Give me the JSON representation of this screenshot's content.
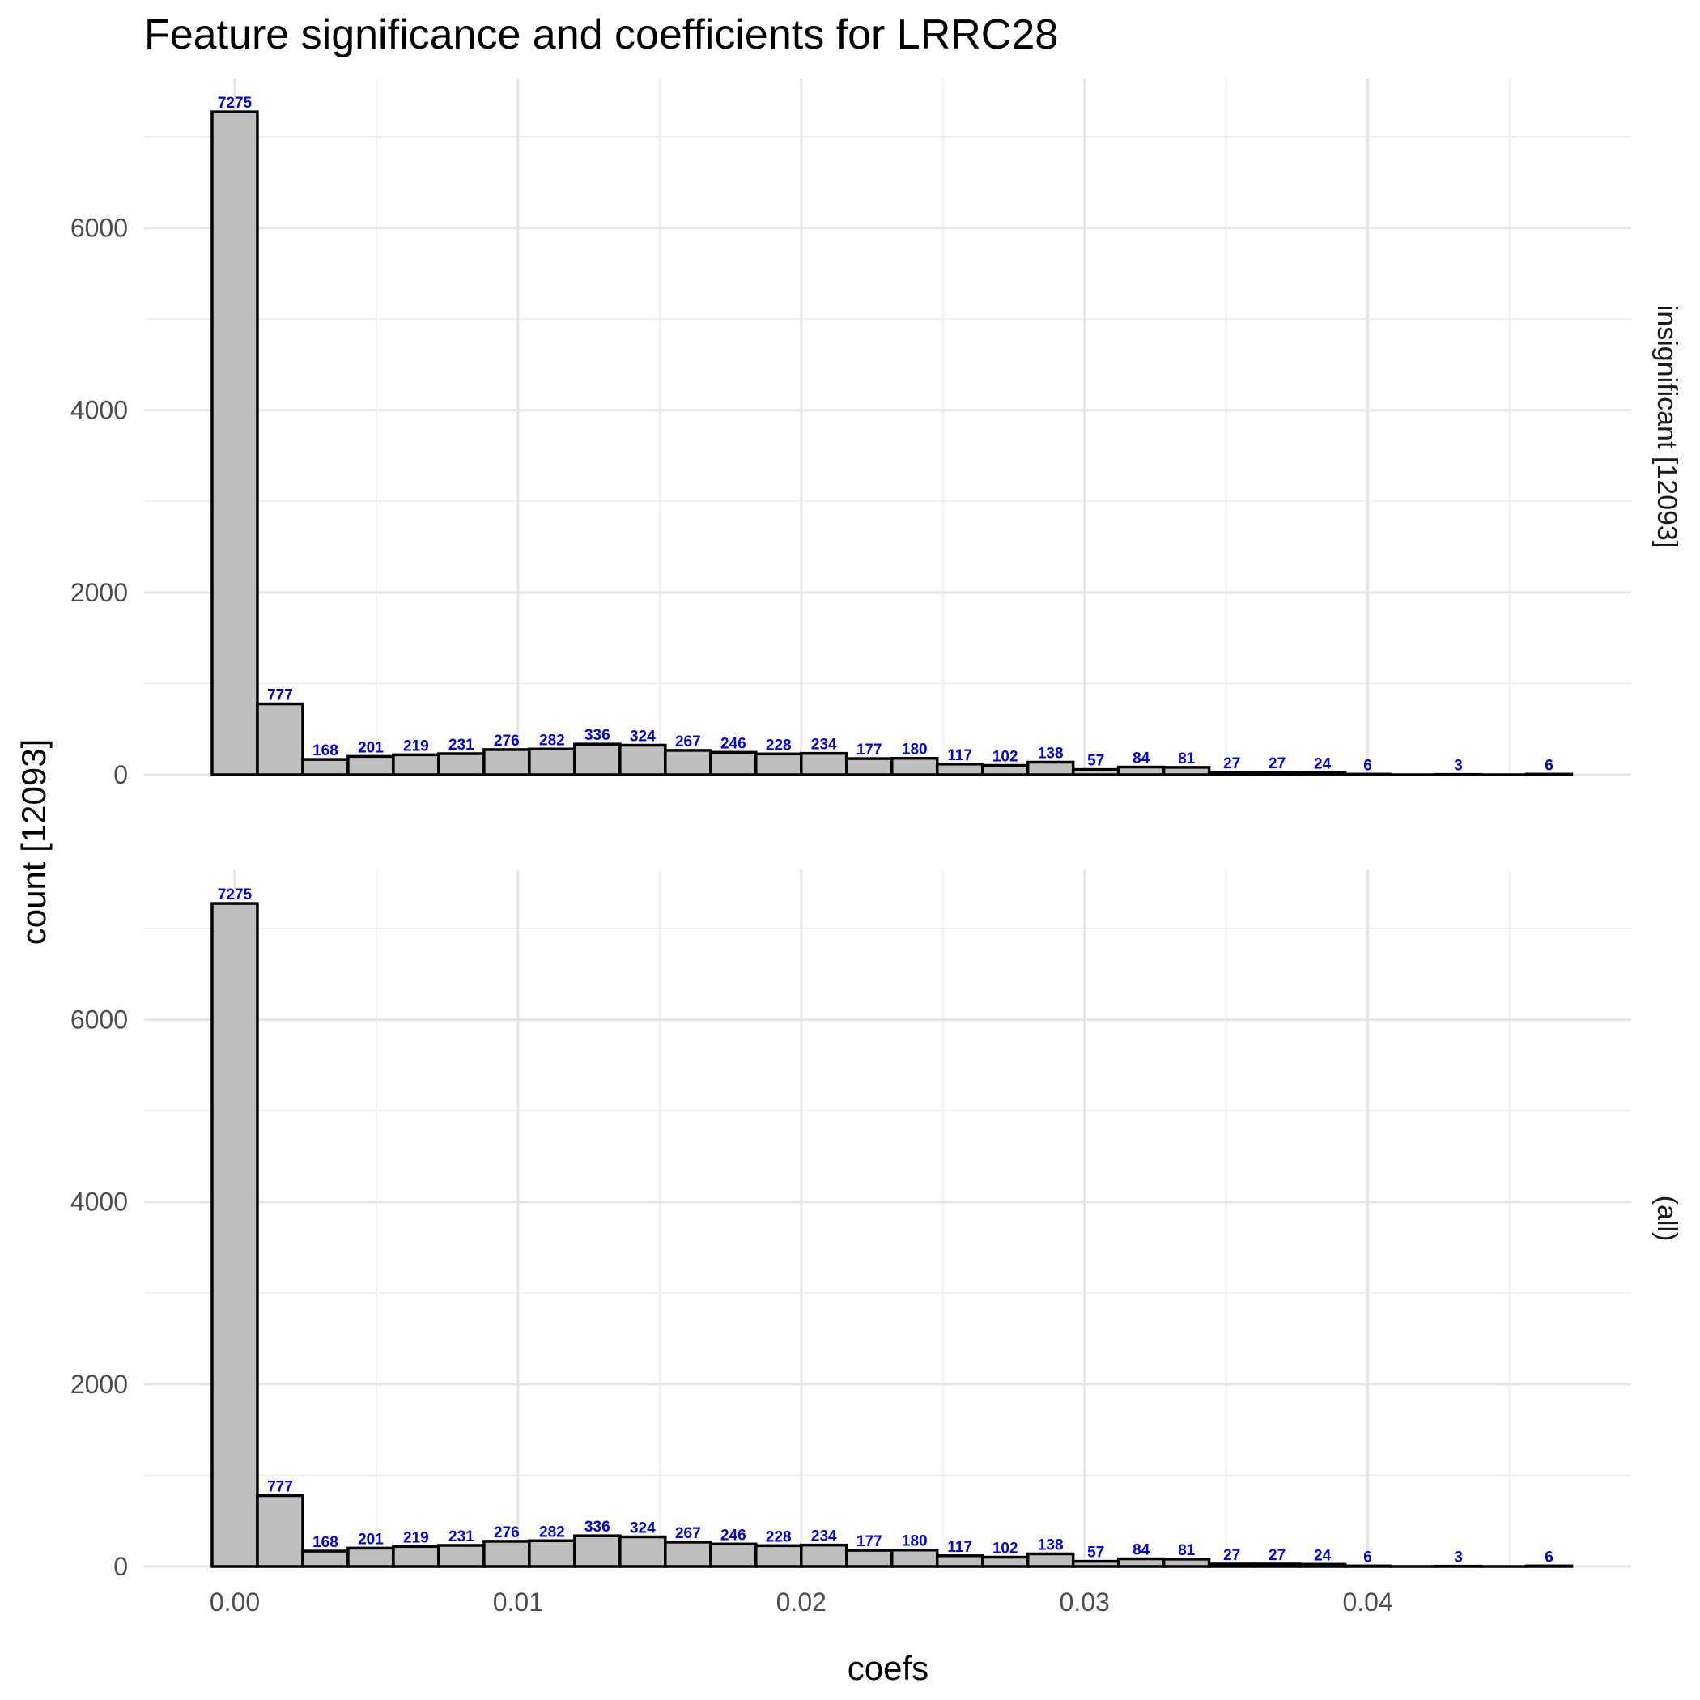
{
  "chart_data": {
    "type": "bar",
    "title": "Feature significance and coefficients for LRRC28",
    "xlabel": "coefs",
    "ylabel": "count [12093]",
    "x_ticks": [
      "0.00",
      "0.01",
      "0.02",
      "0.03",
      "0.04"
    ],
    "x_tick_values": [
      0,
      0.01,
      0.02,
      0.03,
      0.04
    ],
    "y_ticks": [
      "0",
      "2000",
      "4000",
      "6000"
    ],
    "y_tick_values": [
      0,
      2000,
      4000,
      6000
    ],
    "xlim": [
      -0.0032,
      0.0493
    ],
    "ylim": [
      0,
      7640
    ],
    "grid": true,
    "bin_width": 0.0016,
    "bin_centers": [
      0.0,
      0.0016,
      0.0032,
      0.0048,
      0.0064,
      0.008,
      0.0096,
      0.0112,
      0.0128,
      0.0144,
      0.016,
      0.0176,
      0.0192,
      0.0208,
      0.0224,
      0.024,
      0.0256,
      0.0272,
      0.0288,
      0.0304,
      0.032,
      0.0336,
      0.0352,
      0.0368,
      0.0384,
      0.04,
      0.0416,
      0.0432,
      0.0448,
      0.0464
    ],
    "panels": [
      {
        "strip_label": "insignificant [12093]",
        "counts": [
          7275,
          777,
          168,
          201,
          219,
          231,
          276,
          282,
          336,
          324,
          267,
          246,
          228,
          234,
          177,
          180,
          117,
          102,
          138,
          57,
          84,
          81,
          27,
          27,
          24,
          6,
          0,
          3,
          0,
          6
        ],
        "labels": [
          "7275",
          "777",
          "168",
          "201",
          "219",
          "231",
          "276",
          "282",
          "336",
          "324",
          "267",
          "246",
          "228",
          "234",
          "177",
          "180",
          "117",
          "102",
          "138",
          "57",
          "84",
          "81",
          "27",
          "27",
          "24",
          "6",
          "",
          "3",
          "",
          "6"
        ]
      },
      {
        "strip_label": "(all)",
        "counts": [
          7275,
          777,
          168,
          201,
          219,
          231,
          276,
          282,
          336,
          324,
          267,
          246,
          228,
          234,
          177,
          180,
          117,
          102,
          138,
          57,
          84,
          81,
          27,
          27,
          24,
          6,
          0,
          3,
          0,
          6
        ],
        "labels": [
          "7275",
          "777",
          "168",
          "201",
          "219",
          "231",
          "276",
          "282",
          "336",
          "324",
          "267",
          "246",
          "228",
          "234",
          "177",
          "180",
          "117",
          "102",
          "138",
          "57",
          "84",
          "81",
          "27",
          "27",
          "24",
          "6",
          "",
          "3",
          "",
          "6"
        ]
      }
    ],
    "colors": {
      "bar_fill": "#bebebe",
      "bar_outline": "#000000",
      "bar_label": "#0000cc",
      "grid": "#e5e5e5"
    }
  }
}
